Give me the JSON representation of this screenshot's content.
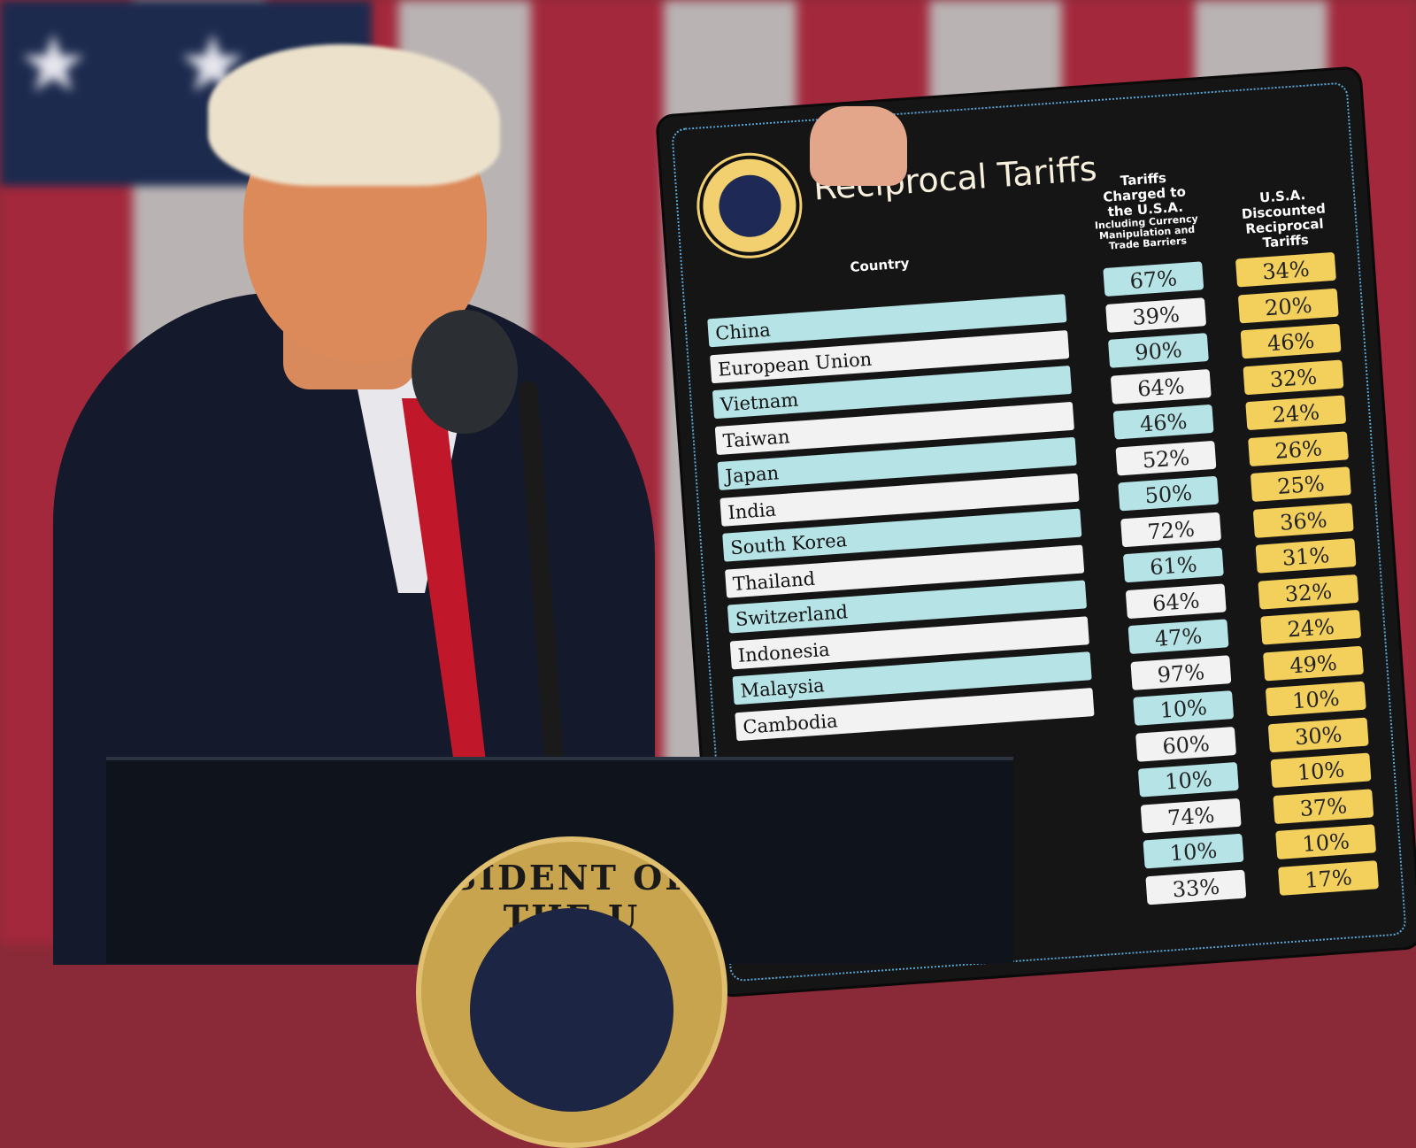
{
  "board": {
    "title": "Reciprocal Tariffs",
    "seal_text": "SEAL OF THE PRESIDENT OF THE UNITED STATES",
    "country_header": "Country",
    "charged_header": "Tariffs Charged to the U.S.A.",
    "charged_subheader": "Including Currency Manipulation and Trade Barriers",
    "discounted_header": "U.S.A. Discounted Reciprocal Tariffs",
    "rows": [
      {
        "country": "China",
        "charged": "67%",
        "discounted": "34%"
      },
      {
        "country": "European Union",
        "charged": "39%",
        "discounted": "20%"
      },
      {
        "country": "Vietnam",
        "charged": "90%",
        "discounted": "46%"
      },
      {
        "country": "Taiwan",
        "charged": "64%",
        "discounted": "32%"
      },
      {
        "country": "Japan",
        "charged": "46%",
        "discounted": "24%"
      },
      {
        "country": "India",
        "charged": "52%",
        "discounted": "26%"
      },
      {
        "country": "South Korea",
        "charged": "50%",
        "discounted": "25%"
      },
      {
        "country": "Thailand",
        "charged": "72%",
        "discounted": "36%"
      },
      {
        "country": "Switzerland",
        "charged": "61%",
        "discounted": "31%"
      },
      {
        "country": "Indonesia",
        "charged": "64%",
        "discounted": "32%"
      },
      {
        "country": "Malaysia",
        "charged": "47%",
        "discounted": "24%"
      },
      {
        "country": "Cambodia",
        "charged": "97%",
        "discounted": "49%"
      },
      {
        "country": "",
        "charged": "10%",
        "discounted": "10%"
      },
      {
        "country": "",
        "charged": "60%",
        "discounted": "30%"
      },
      {
        "country": "",
        "charged": "10%",
        "discounted": "10%"
      },
      {
        "country": "",
        "charged": "74%",
        "discounted": "37%"
      },
      {
        "country": "",
        "charged": "10%",
        "discounted": "10%"
      },
      {
        "country": "",
        "charged": "33%",
        "discounted": "17%"
      }
    ],
    "colors": {
      "background": "#151516",
      "teal": "#b5e3e6",
      "white": "#f2f2f2",
      "yellow": "#f3cf5c"
    }
  },
  "podium": {
    "seal_text": "SIDENT OF THE U"
  }
}
